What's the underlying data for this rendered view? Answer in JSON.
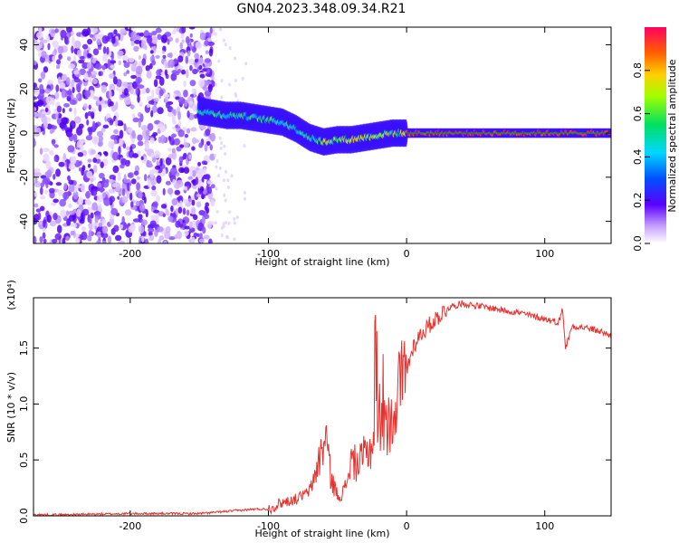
{
  "figure_title": "GN04.2023.348.09.34.R21",
  "colors": {
    "spectrum_line": "#e8302c",
    "ridge_line": "#00aa00",
    "axis": "#000000"
  },
  "chart_data": [
    {
      "type": "heatmap",
      "title": "",
      "xlabel": "Height of straight line (km)",
      "ylabel": "Frequency (Hz)",
      "xlim": [
        -270,
        148
      ],
      "ylim": [
        -50,
        48
      ],
      "xticks": [
        -200,
        -100,
        0,
        100
      ],
      "yticks": [
        -40,
        -20,
        0,
        20,
        40
      ],
      "colorbar": {
        "label": "Normalized spectral amplitude",
        "ticks": [
          0.0,
          0.2,
          0.4,
          0.6,
          0.8
        ],
        "range": [
          0,
          1
        ],
        "colormap": "rainbow"
      },
      "ridge": {
        "x": [
          -150,
          -140,
          -130,
          -120,
          -110,
          -100,
          -90,
          -80,
          -70,
          -60,
          -50,
          -40,
          -30,
          -20,
          -10,
          0,
          20,
          40,
          60,
          80,
          100,
          120,
          148
        ],
        "y": [
          10,
          9,
          8,
          8,
          7,
          6,
          5,
          2,
          -2,
          -4,
          -3,
          -3,
          -2,
          -1,
          0,
          0,
          0,
          0,
          0,
          0,
          0,
          0,
          0
        ]
      }
    },
    {
      "type": "line",
      "title": "",
      "xlabel": "Height of straight line (km)",
      "ylabel": "SNR (10 * v/v)",
      "y_scale_label": "(x10⁴)",
      "xlim": [
        -270,
        148
      ],
      "ylim": [
        0,
        1.95
      ],
      "xticks": [
        -200,
        -100,
        0,
        100
      ],
      "yticks": [
        0.0,
        0.5,
        1.0,
        1.5
      ],
      "x": [
        -270,
        -250,
        -200,
        -150,
        -130,
        -120,
        -110,
        -100,
        -90,
        -80,
        -70,
        -62,
        -58,
        -55,
        -50,
        -45,
        -40,
        -35,
        -30,
        -25,
        -20,
        -15,
        -10,
        -5,
        0,
        5,
        10,
        20,
        30,
        40,
        50,
        60,
        70,
        80,
        90,
        100,
        110,
        113,
        115,
        120,
        130,
        140,
        148
      ],
      "y": [
        0.01,
        0.01,
        0.02,
        0.02,
        0.04,
        0.05,
        0.06,
        0.06,
        0.12,
        0.15,
        0.22,
        0.55,
        0.72,
        0.35,
        0.18,
        0.22,
        0.5,
        0.45,
        0.55,
        0.62,
        0.9,
        0.75,
        0.95,
        1.15,
        1.3,
        1.52,
        1.62,
        1.75,
        1.86,
        1.9,
        1.88,
        1.86,
        1.84,
        1.82,
        1.79,
        1.76,
        1.73,
        1.85,
        1.5,
        1.7,
        1.68,
        1.65,
        1.61
      ]
    }
  ]
}
